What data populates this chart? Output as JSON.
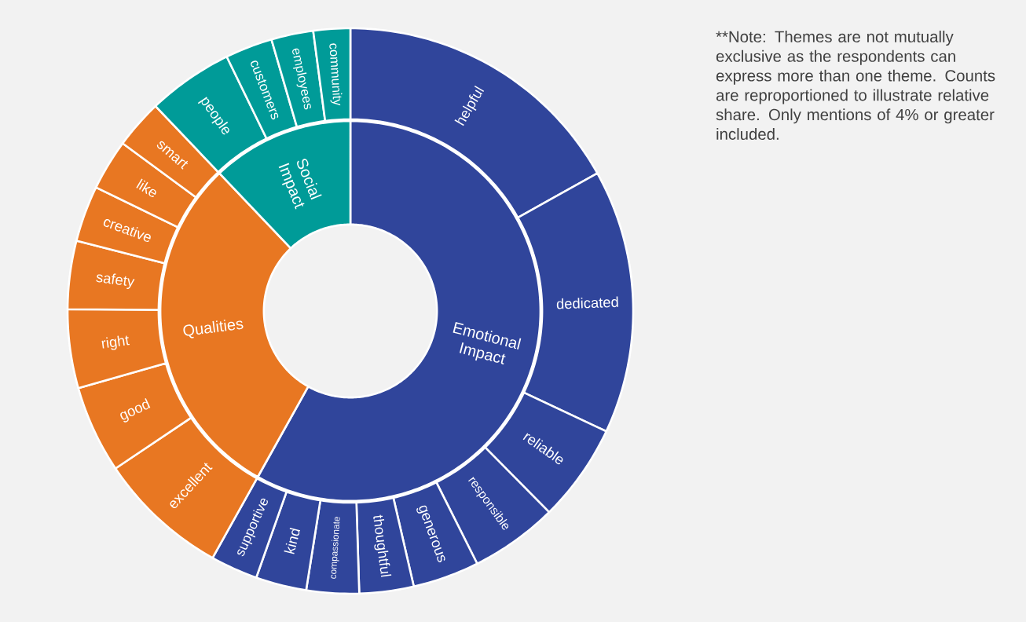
{
  "chart_data": [
    {
      "type": "donut",
      "categories": [
        "Emotional Impact",
        "Qualities",
        "Social Impact"
      ],
      "values": [
        58.1,
        29.8,
        12.1
      ],
      "colors": [
        "#30459b",
        "#e87722",
        "#009b98"
      ],
      "annotations": [
        "**Note: Themes are not mutually exclusive as the respondents can express more than one theme. Counts are reproportioned to illustrate relative share. Only mentions of 4% or greater included."
      ]
    },
    {
      "type": "donut",
      "categories": [
        "helpful",
        "dedicated",
        "reliable",
        "responsible",
        "generous",
        "thoughtful",
        "compassionate",
        "kind",
        "supportive",
        "excellent",
        "good",
        "right",
        "safety",
        "creative",
        "like",
        "smart",
        "people",
        "customers",
        "employees",
        "community"
      ],
      "values": [
        16.9,
        15.1,
        5.6,
        5.0,
        3.8,
        3.1,
        3.0,
        2.9,
        2.7,
        7.5,
        5.0,
        4.5,
        3.9,
        3.2,
        2.9,
        2.8,
        4.9,
        2.7,
        2.4,
        2.1
      ],
      "colors": [
        "#30459b",
        "#30459b",
        "#30459b",
        "#30459b",
        "#30459b",
        "#30459b",
        "#30459b",
        "#30459b",
        "#30459b",
        "#e87722",
        "#e87722",
        "#e87722",
        "#e87722",
        "#e87722",
        "#e87722",
        "#e87722",
        "#009b98",
        "#009b98",
        "#009b98",
        "#009b98"
      ]
    }
  ]
}
